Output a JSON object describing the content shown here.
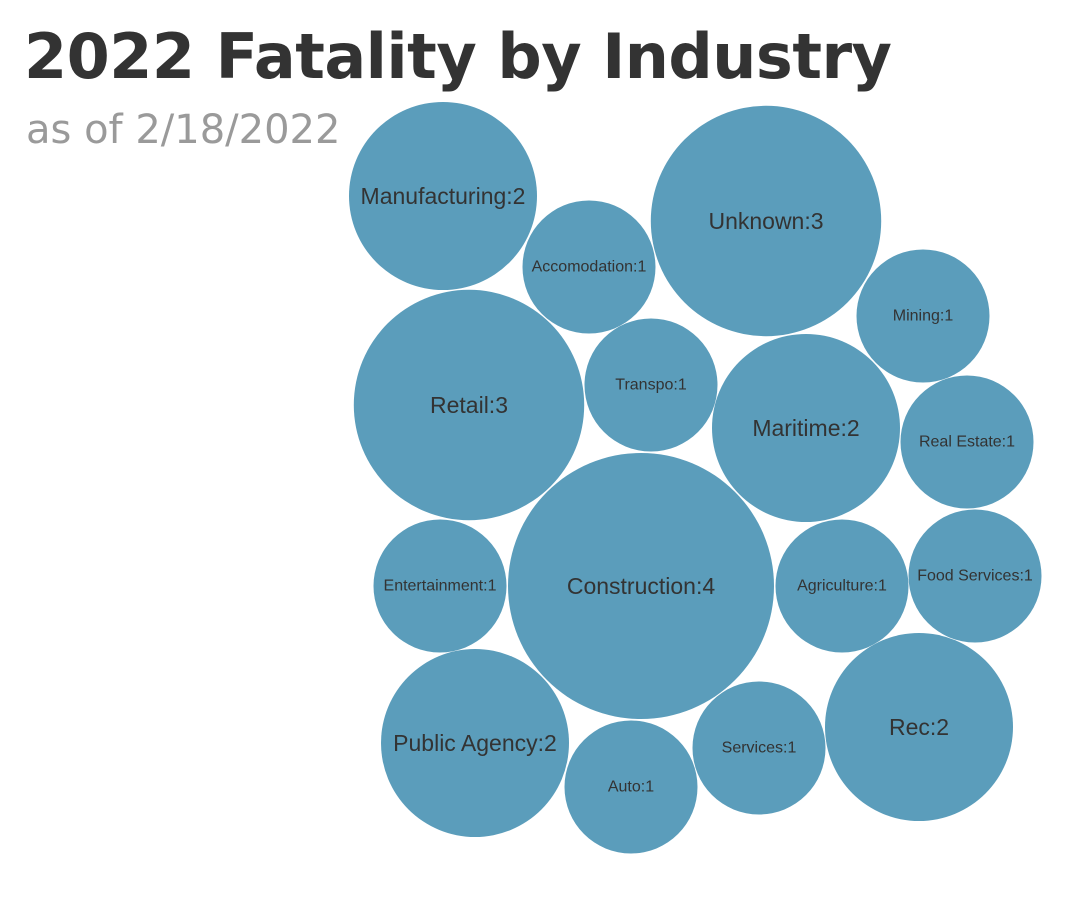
{
  "header": {
    "title": "2022 Fatality by Industry",
    "subtitle": "as of 2/18/2022"
  },
  "colors": {
    "bubble": "#5b9dbb",
    "label": "#333333",
    "title": "#333333",
    "subtitle": "#9a9a9a"
  },
  "chart_data": {
    "type": "bubble",
    "title": "2022 Fatality by Industry",
    "subtitle": "as of 2/18/2022",
    "label_format": "category:value",
    "series": [
      {
        "categories": [
          "Manufacturing",
          "Accomodation",
          "Unknown",
          "Mining",
          "Retail",
          "Transpo",
          "Maritime",
          "Real Estate",
          "Entertainment",
          "Construction",
          "Agriculture",
          "Food Services",
          "Public Agency",
          "Auto",
          "Services",
          "Rec"
        ],
        "values": [
          2,
          1,
          3,
          1,
          3,
          1,
          2,
          1,
          1,
          4,
          1,
          1,
          2,
          1,
          1,
          2
        ]
      }
    ]
  }
}
